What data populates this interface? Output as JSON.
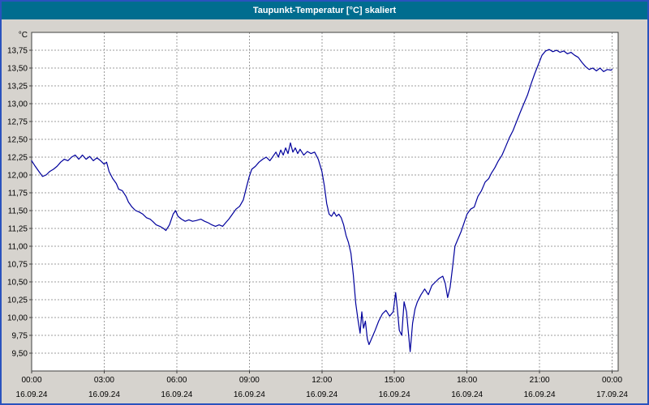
{
  "window": {
    "title": "Taupunkt-Temperatur [°C] skaliert"
  },
  "colors": {
    "title_bar": "#006d8f",
    "title_text": "#ffffff",
    "outer_border": "#2a52be",
    "chrome_bg": "#d6d3ce",
    "plot_bg": "#ffffff",
    "plot_border": "#404040",
    "grid": "#9c9c9c",
    "axis": "#404040",
    "text": "#000000",
    "series": "#00009c"
  },
  "chart_data": {
    "type": "line",
    "title": "Taupunkt-Temperatur [°C] skaliert",
    "xlabel": "",
    "ylabel": "°C",
    "ylim": [
      9.25,
      14.0
    ],
    "xlim_hours": [
      0,
      24.25
    ],
    "grid": {
      "vertical_every_hours": 3,
      "horizontal_step": 0.25,
      "style": "dashed"
    },
    "legend": "none",
    "y_tick_labels": [
      "9,50",
      "9,75",
      "10,00",
      "10,25",
      "10,50",
      "10,75",
      "11,00",
      "11,25",
      "11,50",
      "11,75",
      "12,00",
      "12,25",
      "12,50",
      "12,75",
      "13,00",
      "13,25",
      "13,50",
      "13,75"
    ],
    "x_ticks": [
      {
        "hour": 0,
        "time": "00:00",
        "date": "16.09.24"
      },
      {
        "hour": 3,
        "time": "03:00",
        "date": "16.09.24"
      },
      {
        "hour": 6,
        "time": "06:00",
        "date": "16.09.24"
      },
      {
        "hour": 9,
        "time": "09:00",
        "date": "16.09.24"
      },
      {
        "hour": 12,
        "time": "12:00",
        "date": "16.09.24"
      },
      {
        "hour": 15,
        "time": "15:00",
        "date": "16.09.24"
      },
      {
        "hour": 18,
        "time": "18:00",
        "date": "16.09.24"
      },
      {
        "hour": 21,
        "time": "21:00",
        "date": "16.09.24"
      },
      {
        "hour": 24,
        "time": "00:00",
        "date": "17.09.24"
      }
    ],
    "series": [
      {
        "name": "Taupunkt-Temperatur",
        "color": "#00009c",
        "points": [
          [
            0.0,
            12.2
          ],
          [
            0.15,
            12.12
          ],
          [
            0.3,
            12.05
          ],
          [
            0.45,
            11.98
          ],
          [
            0.6,
            12.0
          ],
          [
            0.75,
            12.05
          ],
          [
            0.9,
            12.08
          ],
          [
            1.05,
            12.12
          ],
          [
            1.2,
            12.18
          ],
          [
            1.35,
            12.22
          ],
          [
            1.5,
            12.2
          ],
          [
            1.65,
            12.25
          ],
          [
            1.8,
            12.28
          ],
          [
            1.95,
            12.22
          ],
          [
            2.1,
            12.28
          ],
          [
            2.25,
            12.22
          ],
          [
            2.4,
            12.26
          ],
          [
            2.55,
            12.2
          ],
          [
            2.7,
            12.24
          ],
          [
            2.85,
            12.2
          ],
          [
            3.0,
            12.15
          ],
          [
            3.1,
            12.18
          ],
          [
            3.2,
            12.05
          ],
          [
            3.35,
            11.95
          ],
          [
            3.5,
            11.88
          ],
          [
            3.6,
            11.8
          ],
          [
            3.75,
            11.78
          ],
          [
            3.9,
            11.7
          ],
          [
            4.0,
            11.62
          ],
          [
            4.15,
            11.55
          ],
          [
            4.3,
            11.5
          ],
          [
            4.45,
            11.48
          ],
          [
            4.6,
            11.45
          ],
          [
            4.75,
            11.4
          ],
          [
            4.9,
            11.38
          ],
          [
            5.0,
            11.35
          ],
          [
            5.15,
            11.3
          ],
          [
            5.3,
            11.28
          ],
          [
            5.45,
            11.25
          ],
          [
            5.55,
            11.22
          ],
          [
            5.7,
            11.3
          ],
          [
            5.85,
            11.45
          ],
          [
            5.95,
            11.5
          ],
          [
            6.05,
            11.42
          ],
          [
            6.2,
            11.38
          ],
          [
            6.35,
            11.35
          ],
          [
            6.5,
            11.37
          ],
          [
            6.65,
            11.35
          ],
          [
            6.8,
            11.36
          ],
          [
            7.0,
            11.38
          ],
          [
            7.15,
            11.35
          ],
          [
            7.3,
            11.33
          ],
          [
            7.45,
            11.3
          ],
          [
            7.6,
            11.28
          ],
          [
            7.75,
            11.3
          ],
          [
            7.9,
            11.28
          ],
          [
            8.0,
            11.32
          ],
          [
            8.15,
            11.38
          ],
          [
            8.3,
            11.45
          ],
          [
            8.45,
            11.52
          ],
          [
            8.6,
            11.56
          ],
          [
            8.75,
            11.65
          ],
          [
            8.9,
            11.85
          ],
          [
            9.0,
            11.98
          ],
          [
            9.1,
            12.08
          ],
          [
            9.25,
            12.12
          ],
          [
            9.4,
            12.18
          ],
          [
            9.55,
            12.22
          ],
          [
            9.7,
            12.25
          ],
          [
            9.85,
            12.2
          ],
          [
            10.0,
            12.27
          ],
          [
            10.1,
            12.32
          ],
          [
            10.2,
            12.25
          ],
          [
            10.3,
            12.35
          ],
          [
            10.4,
            12.28
          ],
          [
            10.5,
            12.38
          ],
          [
            10.6,
            12.3
          ],
          [
            10.7,
            12.45
          ],
          [
            10.8,
            12.32
          ],
          [
            10.9,
            12.38
          ],
          [
            11.0,
            12.3
          ],
          [
            11.1,
            12.36
          ],
          [
            11.25,
            12.28
          ],
          [
            11.4,
            12.33
          ],
          [
            11.55,
            12.3
          ],
          [
            11.7,
            12.32
          ],
          [
            11.85,
            12.22
          ],
          [
            12.0,
            12.05
          ],
          [
            12.1,
            11.85
          ],
          [
            12.2,
            11.6
          ],
          [
            12.3,
            11.45
          ],
          [
            12.4,
            11.42
          ],
          [
            12.5,
            11.48
          ],
          [
            12.6,
            11.42
          ],
          [
            12.7,
            11.45
          ],
          [
            12.8,
            11.4
          ],
          [
            12.9,
            11.3
          ],
          [
            13.0,
            11.15
          ],
          [
            13.1,
            11.05
          ],
          [
            13.2,
            10.9
          ],
          [
            13.3,
            10.6
          ],
          [
            13.4,
            10.2
          ],
          [
            13.5,
            9.95
          ],
          [
            13.58,
            9.78
          ],
          [
            13.65,
            10.08
          ],
          [
            13.72,
            9.85
          ],
          [
            13.8,
            9.95
          ],
          [
            13.88,
            9.7
          ],
          [
            13.95,
            9.62
          ],
          [
            14.05,
            9.7
          ],
          [
            14.2,
            9.82
          ],
          [
            14.35,
            9.95
          ],
          [
            14.5,
            10.05
          ],
          [
            14.65,
            10.1
          ],
          [
            14.8,
            10.02
          ],
          [
            14.95,
            10.08
          ],
          [
            15.05,
            10.35
          ],
          [
            15.12,
            10.12
          ],
          [
            15.2,
            9.82
          ],
          [
            15.3,
            9.75
          ],
          [
            15.4,
            10.22
          ],
          [
            15.5,
            10.08
          ],
          [
            15.58,
            9.78
          ],
          [
            15.65,
            9.52
          ],
          [
            15.75,
            9.92
          ],
          [
            15.85,
            10.12
          ],
          [
            15.95,
            10.22
          ],
          [
            16.1,
            10.32
          ],
          [
            16.25,
            10.4
          ],
          [
            16.4,
            10.32
          ],
          [
            16.55,
            10.45
          ],
          [
            16.7,
            10.5
          ],
          [
            16.85,
            10.55
          ],
          [
            17.0,
            10.58
          ],
          [
            17.1,
            10.48
          ],
          [
            17.2,
            10.28
          ],
          [
            17.3,
            10.42
          ],
          [
            17.4,
            10.7
          ],
          [
            17.5,
            11.0
          ],
          [
            17.6,
            11.08
          ],
          [
            17.75,
            11.2
          ],
          [
            17.9,
            11.35
          ],
          [
            18.0,
            11.45
          ],
          [
            18.15,
            11.52
          ],
          [
            18.3,
            11.55
          ],
          [
            18.45,
            11.7
          ],
          [
            18.6,
            11.78
          ],
          [
            18.75,
            11.9
          ],
          [
            18.9,
            11.95
          ],
          [
            19.0,
            12.02
          ],
          [
            19.15,
            12.1
          ],
          [
            19.3,
            12.2
          ],
          [
            19.45,
            12.28
          ],
          [
            19.6,
            12.4
          ],
          [
            19.75,
            12.52
          ],
          [
            19.9,
            12.62
          ],
          [
            20.05,
            12.75
          ],
          [
            20.2,
            12.88
          ],
          [
            20.35,
            13.0
          ],
          [
            20.5,
            13.12
          ],
          [
            20.65,
            13.28
          ],
          [
            20.8,
            13.42
          ],
          [
            20.95,
            13.55
          ],
          [
            21.1,
            13.68
          ],
          [
            21.25,
            13.74
          ],
          [
            21.4,
            13.76
          ],
          [
            21.55,
            13.73
          ],
          [
            21.7,
            13.75
          ],
          [
            21.85,
            13.72
          ],
          [
            22.0,
            13.74
          ],
          [
            22.15,
            13.7
          ],
          [
            22.3,
            13.72
          ],
          [
            22.45,
            13.68
          ],
          [
            22.6,
            13.65
          ],
          [
            22.75,
            13.58
          ],
          [
            22.9,
            13.52
          ],
          [
            23.05,
            13.48
          ],
          [
            23.2,
            13.5
          ],
          [
            23.35,
            13.46
          ],
          [
            23.5,
            13.5
          ],
          [
            23.65,
            13.45
          ],
          [
            23.8,
            13.48
          ],
          [
            23.95,
            13.47
          ],
          [
            24.0,
            13.48
          ]
        ]
      }
    ]
  }
}
